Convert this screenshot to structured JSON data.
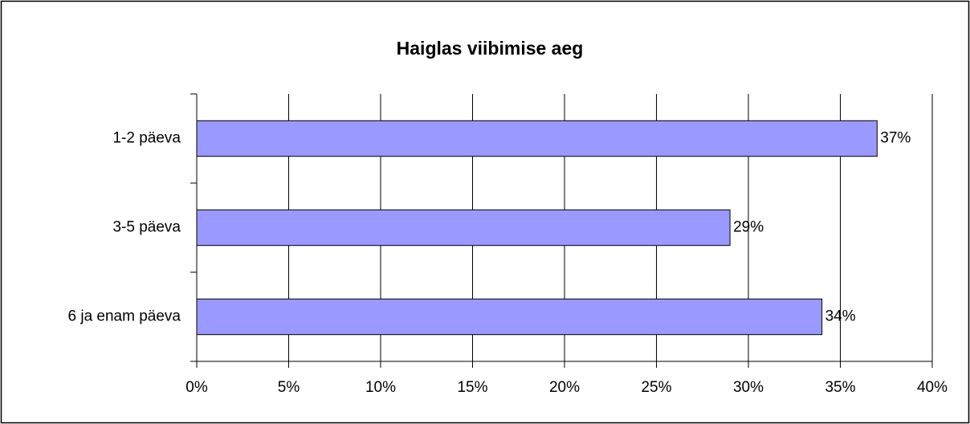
{
  "chart_data": {
    "type": "barh",
    "title": "Haiglas viibimise aeg",
    "categories": [
      "1-2 päeva",
      "3-5 päeva",
      "6 ja enam päeva"
    ],
    "values": [
      37,
      29,
      34
    ],
    "value_labels": [
      "37%",
      "29%",
      "34%"
    ],
    "color": "#9999ff",
    "xlim": [
      0,
      40
    ],
    "xticks": [
      {
        "value": 0,
        "label": "0%"
      },
      {
        "value": 5,
        "label": "5%"
      },
      {
        "value": 10,
        "label": "10%"
      },
      {
        "value": 15,
        "label": "15%"
      },
      {
        "value": 20,
        "label": "20%"
      },
      {
        "value": 25,
        "label": "25%"
      },
      {
        "value": 30,
        "label": "30%"
      },
      {
        "value": 35,
        "label": "35%"
      },
      {
        "value": 40,
        "label": "40%"
      }
    ],
    "grid": true
  }
}
